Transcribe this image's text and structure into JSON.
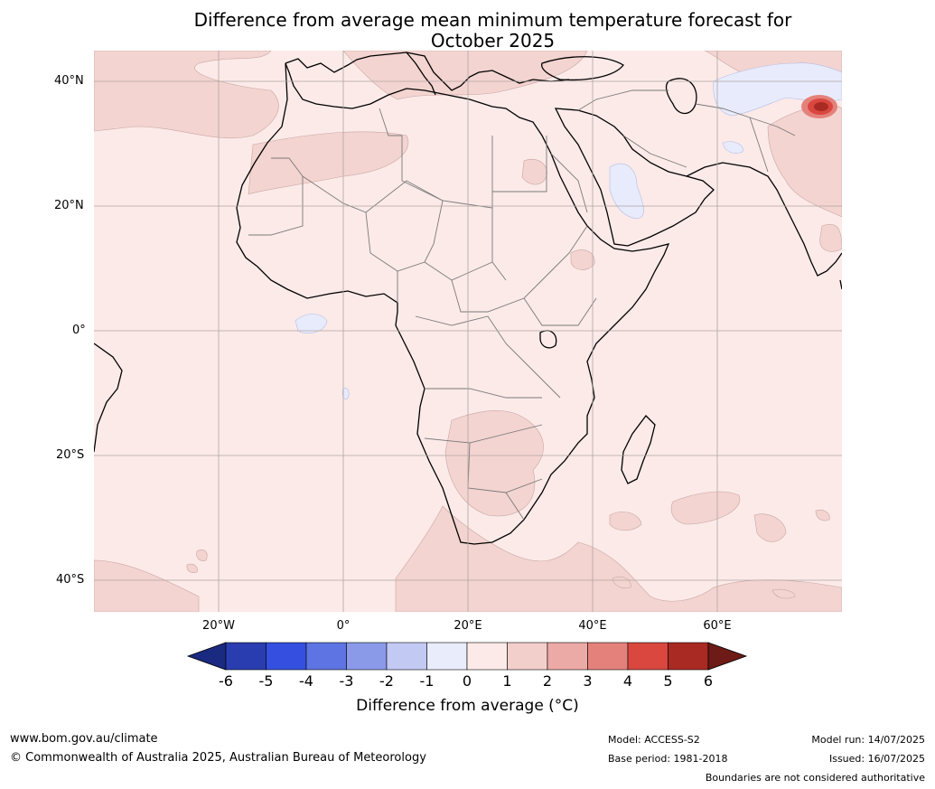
{
  "title_line1": "Difference from average mean minimum temperature forecast for",
  "title_line2": "October 2025",
  "lat_labels": [
    "40°N",
    "20°N",
    "0°",
    "20°S",
    "40°S"
  ],
  "lon_labels": [
    "20°W",
    "0°",
    "20°E",
    "40°E",
    "60°E"
  ],
  "colorbar": {
    "title": "Difference from average (°C)",
    "ticks": [
      "-6",
      "-5",
      "-4",
      "-3",
      "-2",
      "-1",
      "0",
      "1",
      "2",
      "3",
      "4",
      "5",
      "6"
    ],
    "colors": [
      "#1a2a80",
      "#2a3db0",
      "#3550e0",
      "#5d74e2",
      "#8a9ae9",
      "#c2c9f3",
      "#e9ecfb",
      "#fbeae8",
      "#f3cfcc",
      "#ecaaa6",
      "#e5817b",
      "#d9473f",
      "#a92a23",
      "#6e1a16"
    ]
  },
  "footer": {
    "website": "www.bom.gov.au/climate",
    "copyright": "© Commonwealth of Australia 2025, Australian Bureau of Meteorology",
    "model": "Model: ACCESS-S2",
    "base_period": "Base period: 1981-2018",
    "model_run": "Model run: 14/07/2025",
    "issued": "Issued: 16/07/2025",
    "disclaimer": "Boundaries are not considered authoritative"
  }
}
